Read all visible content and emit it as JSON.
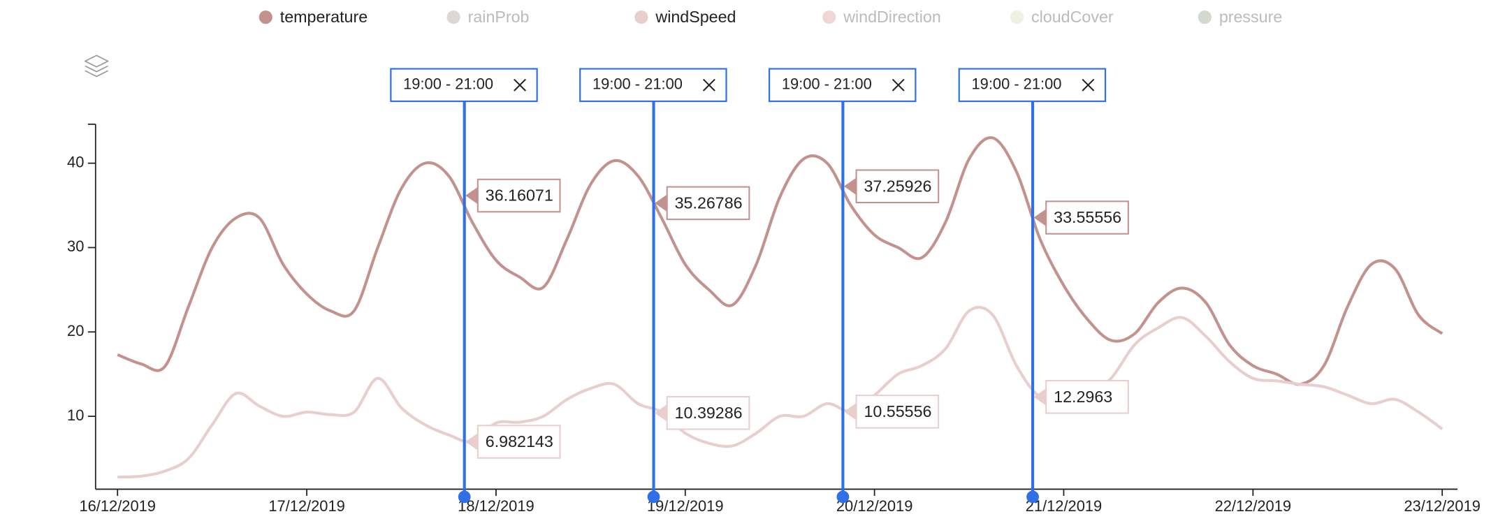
{
  "chart_data": {
    "type": "line",
    "x": [
      16.0,
      16.125,
      16.25,
      16.375,
      16.5,
      16.625,
      16.75,
      16.875,
      17.0,
      17.125,
      17.25,
      17.375,
      17.5,
      17.625,
      17.75,
      17.875,
      18.0,
      18.125,
      18.25,
      18.375,
      18.5,
      18.625,
      18.75,
      18.875,
      19.0,
      19.125,
      19.25,
      19.375,
      19.5,
      19.625,
      19.75,
      19.875,
      20.0,
      20.125,
      20.25,
      20.375,
      20.5,
      20.625,
      20.75,
      20.875,
      21.0,
      21.125,
      21.25,
      21.375,
      21.5,
      21.625,
      21.75,
      21.875,
      22.0,
      22.125,
      22.25,
      22.375,
      22.5,
      22.625,
      22.75,
      22.875,
      23.0
    ],
    "series": [
      {
        "name": "temperature",
        "color": "#c2928e",
        "visible": true,
        "values": [
          17.3,
          16.2,
          15.9,
          23,
          30,
          33.5,
          33.5,
          28,
          24.5,
          22.5,
          22.5,
          30,
          37,
          40,
          38.5,
          33,
          28.5,
          26.5,
          25.3,
          31,
          37.5,
          40.3,
          38.5,
          33.5,
          28,
          25,
          23.2,
          28,
          36,
          40.5,
          40,
          35,
          31.5,
          30,
          28.8,
          33,
          40.5,
          43,
          39,
          31,
          25.5,
          21.5,
          19,
          19.8,
          23.5,
          25.2,
          23.5,
          18.5,
          16,
          15,
          13.8,
          16,
          23,
          28,
          27.5,
          22,
          19.8
        ]
      },
      {
        "name": "rainProb",
        "color": "#ddd6d6",
        "visible": false
      },
      {
        "name": "windSpeed",
        "color": "#e8cfcd",
        "visible": true,
        "values": [
          2.8,
          2.9,
          3.5,
          5,
          9,
          12.7,
          11.2,
          10,
          10.5,
          10.2,
          10.5,
          14.5,
          11,
          9,
          7.8,
          7,
          9.2,
          9.3,
          10,
          12,
          13.3,
          13.8,
          11.5,
          10.5,
          8,
          6.8,
          6.5,
          8,
          10,
          10,
          11.5,
          10.6,
          12.5,
          15,
          16,
          18,
          22.5,
          22,
          16,
          12.3,
          12.5,
          12.5,
          14.5,
          18.5,
          20.5,
          21.7,
          19.5,
          16.5,
          14.5,
          14.2,
          13.8,
          13.5,
          12.5,
          11.5,
          12,
          10.5,
          8.5
        ]
      },
      {
        "name": "windDirection",
        "color": "#f0d6d6",
        "visible": false
      },
      {
        "name": "cloudCover",
        "color": "#eef0e0",
        "visible": false
      },
      {
        "name": "pressure",
        "color": "#d2d8cf",
        "visible": false
      }
    ],
    "xlim": [
      15.884,
      23.081
    ],
    "xticks": [
      {
        "value": 16,
        "label": "16/12/2019"
      },
      {
        "value": 17,
        "label": "17/12/2019"
      },
      {
        "value": 18,
        "label": "18/12/2019"
      },
      {
        "value": 19,
        "label": "19/12/2019"
      },
      {
        "value": 20,
        "label": "20/12/2019"
      },
      {
        "value": 21,
        "label": "21/12/2019"
      },
      {
        "value": 22,
        "label": "22/12/2019"
      },
      {
        "value": 23,
        "label": "23/12/2019"
      }
    ],
    "ylim": [
      1.36,
      44.62
    ],
    "yticks": [
      10,
      20,
      30,
      40
    ],
    "cursor_color": "#2f6fe8",
    "cursors": [
      {
        "x": 17.833,
        "label": "19:00 - 21:00",
        "values": [
          36.16071,
          6.982143
        ]
      },
      {
        "x": 18.833,
        "label": "19:00 - 21:00",
        "values": [
          35.26786,
          10.39286
        ]
      },
      {
        "x": 19.833,
        "label": "19:00 - 21:00",
        "values": [
          37.25926,
          10.55556
        ]
      },
      {
        "x": 20.836,
        "label": "19:00 - 21:00",
        "values": [
          33.55556,
          12.2963
        ]
      }
    ]
  }
}
